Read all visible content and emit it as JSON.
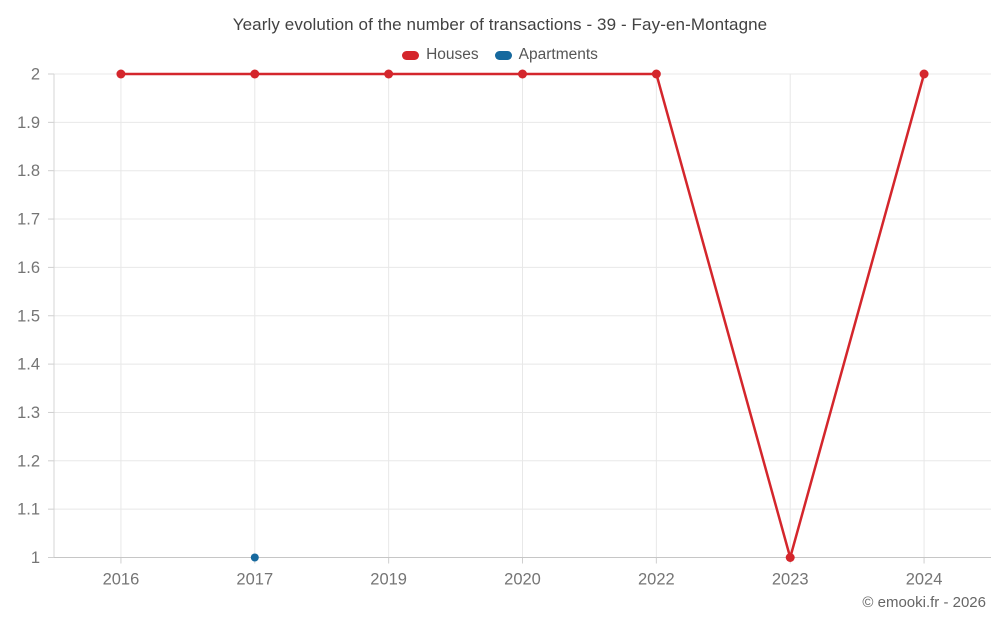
{
  "page": {
    "copyright": "© emooki.fr - 2026"
  },
  "chart_data": {
    "type": "line",
    "title": "Yearly evolution of the number of transactions - 39 - Fay-en-Montagne",
    "categories": [
      "2016",
      "2017",
      "2019",
      "2020",
      "2022",
      "2023",
      "2024"
    ],
    "series": [
      {
        "name": "Houses",
        "color": "#d4262c",
        "values": [
          2,
          2,
          2,
          2,
          2,
          1,
          2
        ]
      },
      {
        "name": "Apartments",
        "color": "#16699e",
        "values": [
          null,
          1,
          null,
          null,
          null,
          null,
          null
        ]
      }
    ],
    "xlabel": "",
    "ylabel": "",
    "ylim": [
      1,
      2
    ],
    "yticks": [
      2,
      1.9,
      1.8,
      1.7,
      1.6,
      1.5,
      1.4,
      1.3,
      1.2,
      1.1,
      1
    ],
    "grid": true,
    "legend_position": "top-center",
    "axis_label_color": "#757575",
    "grid_color": "#e8e8e8",
    "tick_color": "#cfcfcf"
  }
}
